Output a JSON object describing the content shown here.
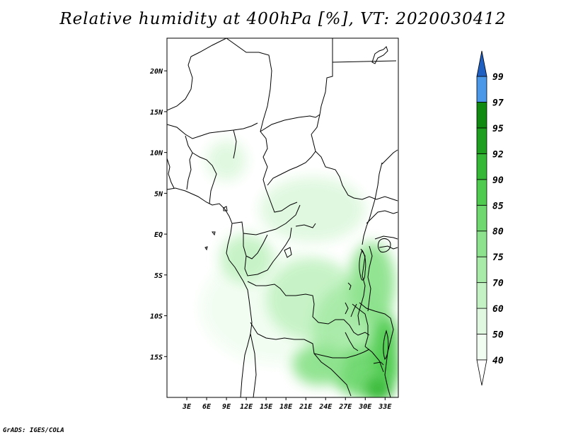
{
  "title": "Relative humidity at 400hPa [%], VT: 2020030412",
  "credit": "GrADS: IGES/COLA",
  "map": {
    "lon_range": [
      0,
      35
    ],
    "lat_range": [
      -20,
      24
    ],
    "lat_ticks": [
      {
        "value": 20,
        "label": "20N"
      },
      {
        "value": 15,
        "label": "15N"
      },
      {
        "value": 10,
        "label": "10N"
      },
      {
        "value": 5,
        "label": "5N"
      },
      {
        "value": 0,
        "label": "EQ"
      },
      {
        "value": -5,
        "label": "5S"
      },
      {
        "value": -10,
        "label": "10S"
      },
      {
        "value": -15,
        "label": "15S"
      }
    ],
    "lon_ticks": [
      {
        "value": 3,
        "label": "3E"
      },
      {
        "value": 6,
        "label": "6E"
      },
      {
        "value": 9,
        "label": "9E"
      },
      {
        "value": 12,
        "label": "12E"
      },
      {
        "value": 15,
        "label": "15E"
      },
      {
        "value": 18,
        "label": "18E"
      },
      {
        "value": 21,
        "label": "21E"
      },
      {
        "value": 24,
        "label": "24E"
      },
      {
        "value": 27,
        "label": "27E"
      },
      {
        "value": 30,
        "label": "30E"
      },
      {
        "value": 33,
        "label": "33E"
      }
    ]
  },
  "colorbar": {
    "levels": [
      {
        "label": "40",
        "color": "#f2fdf2"
      },
      {
        "label": "50",
        "color": "#dff8df"
      },
      {
        "label": "60",
        "color": "#c5f2c5"
      },
      {
        "label": "70",
        "color": "#a8eaa8"
      },
      {
        "label": "75",
        "color": "#8de28d"
      },
      {
        "label": "80",
        "color": "#6fd86f"
      },
      {
        "label": "85",
        "color": "#4fcb4f"
      },
      {
        "label": "90",
        "color": "#35b835"
      },
      {
        "label": "92",
        "color": "#1f9f1f"
      },
      {
        "label": "95",
        "color": "#118a11"
      },
      {
        "label": "97",
        "color": "#4b97e8"
      },
      {
        "label": "99",
        "color": "#2a6fd6"
      }
    ],
    "top_arrow_color": "#1f5fc2",
    "bottom_arrow_color": "#ffffff"
  },
  "humidity_areas": [
    {
      "level": 40,
      "lon": 17,
      "lat": -9,
      "rlon": 12,
      "rlat": 7
    },
    {
      "level": 50,
      "lon": 22,
      "lat": 3,
      "rlon": 8,
      "rlat": 4
    },
    {
      "level": 50,
      "lon": 9,
      "lat": 9,
      "rlon": 3,
      "rlat": 2.5
    },
    {
      "level": 60,
      "lon": 22,
      "lat": -8,
      "rlon": 7,
      "rlat": 5
    },
    {
      "level": 60,
      "lon": 12,
      "lat": -3,
      "rlon": 4,
      "rlat": 3
    },
    {
      "level": 70,
      "lon": 28,
      "lat": -12,
      "rlon": 6,
      "rlat": 6
    },
    {
      "level": 75,
      "lon": 31,
      "lat": -6,
      "rlon": 3.5,
      "rlat": 5
    },
    {
      "level": 80,
      "lon": 30,
      "lat": -17,
      "rlon": 5,
      "rlat": 3
    },
    {
      "level": 85,
      "lon": 33,
      "lat": -14,
      "rlon": 2,
      "rlat": 4
    },
    {
      "level": 75,
      "lon": 23,
      "lat": -16,
      "rlon": 4,
      "rlat": 2.5
    },
    {
      "level": 90,
      "lon": 32,
      "lat": -19,
      "rlon": 2,
      "rlat": 1.5
    }
  ]
}
